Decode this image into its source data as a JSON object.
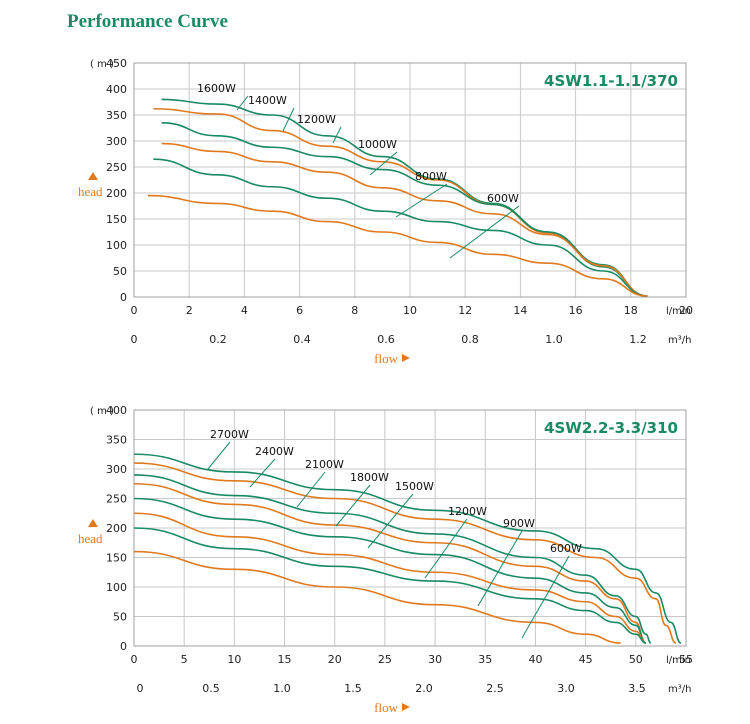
{
  "title": "Performance Curve",
  "colors": {
    "green": "#1a8a63",
    "orange": "#e07a1f",
    "grid": "#c8c8c8"
  },
  "chart_data": [
    {
      "type": "line",
      "model": "4SW1.1-1.1/370",
      "y_unit": "( m )",
      "ylabel": "head",
      "xlabel": "flow",
      "x_unit_primary": "l/min",
      "x_unit_secondary": "m³/h",
      "ylim": [
        0,
        450
      ],
      "xlim": [
        0,
        20
      ],
      "yticks": [
        0,
        50,
        100,
        150,
        200,
        250,
        300,
        350,
        400,
        450
      ],
      "xticks": [
        0,
        2,
        4,
        6,
        8,
        10,
        12,
        14,
        16,
        18,
        20
      ],
      "xticks_secondary": [
        "0",
        "0.2",
        "0.4",
        "0.6",
        "0.8",
        "1.0",
        "1.2"
      ],
      "grid": true,
      "series": [
        {
          "name": "1600W",
          "color": "green",
          "x": [
            1,
            3,
            5,
            7,
            9,
            11,
            13,
            15,
            17,
            18.6
          ],
          "y": [
            380,
            371,
            350,
            310,
            270,
            227,
            180,
            125,
            62,
            2
          ],
          "label_at": [
            5.5,
            364
          ]
        },
        {
          "name": "1400W",
          "color": "orange",
          "x": [
            0.7,
            3,
            5,
            7,
            9,
            11,
            13,
            15,
            17,
            18.6
          ],
          "y": [
            362,
            352,
            320,
            290,
            260,
            225,
            178,
            123,
            60,
            2
          ],
          "label_at": [
            6.2,
            320
          ]
        },
        {
          "name": "1200W",
          "color": "green",
          "x": [
            1,
            3,
            5,
            7,
            9,
            11,
            13,
            15,
            17,
            18.6
          ],
          "y": [
            335,
            310,
            288,
            270,
            245,
            215,
            178,
            125,
            58,
            2
          ],
          "label_at": [
            8.2,
            272
          ]
        },
        {
          "name": "1000W",
          "color": "orange",
          "x": [
            1,
            3,
            5,
            7,
            9,
            11,
            13,
            15,
            17,
            18.6
          ],
          "y": [
            295,
            280,
            260,
            240,
            210,
            185,
            160,
            120,
            60,
            2
          ],
          "label_at": [
            10,
            210
          ]
        },
        {
          "name": "800W",
          "color": "green",
          "x": [
            0.7,
            3,
            5,
            7,
            9,
            11,
            13,
            15,
            17,
            18.6
          ],
          "y": [
            265,
            235,
            212,
            190,
            165,
            145,
            128,
            100,
            50,
            2
          ],
          "label_at": [
            12,
            157
          ]
        },
        {
          "name": "600W",
          "color": "orange",
          "x": [
            0.5,
            3,
            5,
            7,
            9,
            11,
            13,
            15,
            17,
            18.6
          ],
          "y": [
            195,
            180,
            165,
            145,
            125,
            105,
            82,
            65,
            35,
            2
          ],
          "label_at": [
            14.5,
            103
          ]
        }
      ]
    },
    {
      "type": "line",
      "model": "4SW2.2-3.3/310",
      "y_unit": "( m )",
      "ylabel": "head",
      "xlabel": "flow",
      "x_unit_primary": "l/min",
      "x_unit_secondary": "m³/h",
      "ylim": [
        0,
        400
      ],
      "xlim": [
        0,
        55
      ],
      "yticks": [
        0,
        50,
        100,
        150,
        200,
        250,
        300,
        350,
        400
      ],
      "xticks": [
        0,
        5,
        10,
        15,
        20,
        25,
        30,
        35,
        40,
        45,
        50,
        55
      ],
      "xticks_secondary": [
        "0",
        "0.5",
        "1.0",
        "1.5",
        "2.0",
        "2.5",
        "3.0",
        "3.5"
      ],
      "grid": true,
      "series": [
        {
          "name": "2700W",
          "color": "green",
          "x": [
            0,
            10,
            20,
            30,
            40,
            46,
            50,
            52,
            53.5,
            54.5
          ],
          "y": [
            325,
            295,
            265,
            230,
            195,
            165,
            130,
            90,
            40,
            5
          ],
          "label_at": [
            4,
            300
          ]
        },
        {
          "name": "2400W",
          "color": "orange",
          "x": [
            0,
            10,
            20,
            30,
            40,
            46,
            50,
            52,
            53,
            54
          ],
          "y": [
            310,
            280,
            250,
            215,
            180,
            150,
            115,
            80,
            35,
            5
          ],
          "label_at": [
            7,
            285
          ]
        },
        {
          "name": "2100W",
          "color": "green",
          "x": [
            0,
            10,
            20,
            30,
            40,
            45,
            48,
            50,
            51,
            51.5
          ],
          "y": [
            290,
            255,
            225,
            190,
            150,
            120,
            85,
            50,
            20,
            5
          ],
          "label_at": [
            9.5,
            260
          ]
        },
        {
          "name": "1800W",
          "color": "orange",
          "x": [
            0,
            10,
            20,
            30,
            40,
            45,
            48,
            50,
            51
          ],
          "y": [
            275,
            240,
            205,
            175,
            135,
            110,
            80,
            40,
            5
          ],
          "label_at": [
            12,
            230
          ]
        },
        {
          "name": "1500W",
          "color": "green",
          "x": [
            0,
            10,
            20,
            30,
            40,
            45,
            48,
            50,
            51
          ],
          "y": [
            250,
            215,
            185,
            155,
            115,
            90,
            65,
            35,
            5
          ],
          "label_at": [
            14,
            200
          ]
        },
        {
          "name": "1200W",
          "color": "orange",
          "x": [
            0,
            10,
            20,
            30,
            40,
            45,
            48,
            50,
            51
          ],
          "y": [
            225,
            185,
            155,
            125,
            95,
            75,
            50,
            25,
            5
          ],
          "label_at": [
            18,
            155
          ]
        },
        {
          "name": "900W",
          "color": "green",
          "x": [
            0,
            10,
            20,
            30,
            40,
            45,
            48,
            50,
            51
          ],
          "y": [
            200,
            165,
            135,
            110,
            80,
            60,
            40,
            20,
            5
          ],
          "label_at": [
            20,
            110
          ]
        },
        {
          "name": "600W",
          "color": "orange",
          "x": [
            0,
            10,
            20,
            30,
            40,
            45,
            48.5
          ],
          "y": [
            160,
            130,
            100,
            70,
            40,
            20,
            5
          ],
          "label_at": [
            23,
            70
          ]
        }
      ],
      "labels_pos": {}
    }
  ]
}
